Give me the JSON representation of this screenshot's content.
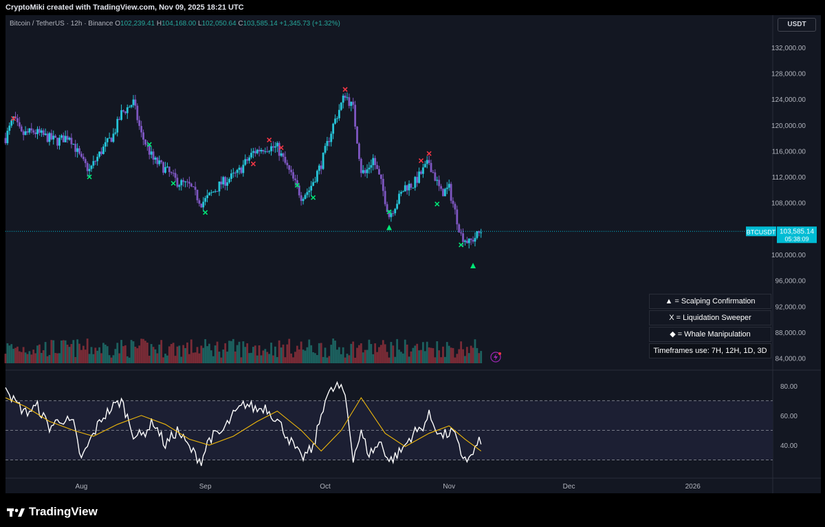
{
  "header": {
    "created_text": "CryptoMiki created with TradingView.com, Nov 09, 2025 18:21 UTC"
  },
  "legend": {
    "symbol": "Bitcoin / TetherUS · 12h · Binance",
    "o_label": "O",
    "o_value": "102,239.41",
    "h_label": "H",
    "h_value": "104,168.00",
    "l_label": "L",
    "l_value": "102,050.64",
    "c_label": "C",
    "c_value": "103,585.14",
    "change": "+1,345.73 (+1.32%)"
  },
  "currency_button": "USDT",
  "price_tag": {
    "symbol": "BTCUSDT",
    "price": "103,585.14",
    "countdown": "05:38:09"
  },
  "info_boxes": [
    "▲ = Scalping Confirmation",
    "X = Liquidation Sweeper",
    "◆ = Whale Manipulation",
    "Timeframes use: 7H, 12H, 1D, 3D"
  ],
  "brand": {
    "name": "TradingView"
  },
  "colors": {
    "background": "#131722",
    "up": "#26c6da",
    "down": "#7e57c2",
    "rsi_line": "#ffffff",
    "rsi_ma": "#f0b90b",
    "buy_x": "#00e676",
    "sell_x": "#f23645",
    "last_price_label": "#00bcd4"
  },
  "chart_data": [
    {
      "type": "candlestick",
      "series_name": "BTCUSDT",
      "y_ticks": [
        "132,000.00",
        "128,000.00",
        "124,000.00",
        "120,000.00",
        "116,000.00",
        "112,000.00",
        "108,000.00",
        "100,000.00",
        "96,000.00",
        "92,000.00",
        "88,000.00",
        "84,000.00"
      ],
      "ylim": [
        83000,
        134000
      ],
      "x_ticks": [
        "Aug",
        "Sep",
        "Oct",
        "Nov",
        "Dec",
        "2026"
      ],
      "x_tick_dates": [
        "2025-08-01",
        "2025-09-01",
        "2025-10-01",
        "2025-11-01",
        "2025-12-01",
        "2026-01-01"
      ],
      "xlim": [
        "2025-07-13",
        "2026-01-21"
      ],
      "last_price": 103585.14,
      "path_dates": [
        "2025-07-13",
        "2025-07-15",
        "2025-07-17",
        "2025-07-20",
        "2025-07-23",
        "2025-07-26",
        "2025-07-29",
        "2025-08-01",
        "2025-08-03",
        "2025-08-06",
        "2025-08-09",
        "2025-08-11",
        "2025-08-14",
        "2025-08-16",
        "2025-08-19",
        "2025-08-22",
        "2025-08-25",
        "2025-08-28",
        "2025-08-31",
        "2025-09-01",
        "2025-09-05",
        "2025-09-09",
        "2025-09-13",
        "2025-09-16",
        "2025-09-19",
        "2025-09-22",
        "2025-09-25",
        "2025-09-27",
        "2025-09-30",
        "2025-10-03",
        "2025-10-06",
        "2025-10-08",
        "2025-10-10",
        "2025-10-11",
        "2025-10-13",
        "2025-10-15",
        "2025-10-17",
        "2025-10-19",
        "2025-10-21",
        "2025-10-23",
        "2025-10-27",
        "2025-10-30",
        "2025-11-01",
        "2025-11-04",
        "2025-11-06",
        "2025-11-09"
      ],
      "path_closes": [
        118000,
        121000,
        118500,
        119000,
        118200,
        117500,
        118400,
        114500,
        113000,
        116000,
        118500,
        121800,
        123500,
        118500,
        114600,
        113200,
        111200,
        110600,
        108000,
        108400,
        111000,
        112500,
        115800,
        116600,
        116500,
        112800,
        109000,
        110000,
        114000,
        120000,
        124800,
        122500,
        113000,
        112500,
        114800,
        111000,
        106000,
        108200,
        110500,
        110800,
        114300,
        109500,
        110200,
        103000,
        101800,
        103585
      ],
      "signals": [
        {
          "type": "sell_x",
          "date": "2025-07-15",
          "price": 121000
        },
        {
          "type": "buy_x",
          "date": "2025-08-03",
          "price": 112000
        },
        {
          "type": "buy_x",
          "date": "2025-08-18",
          "price": 117000
        },
        {
          "type": "buy_x",
          "date": "2025-08-24",
          "price": 111000
        },
        {
          "type": "buy_x",
          "date": "2025-09-01",
          "price": 106500
        },
        {
          "type": "sell_x",
          "date": "2025-09-13",
          "price": 114000
        },
        {
          "type": "sell_x",
          "date": "2025-09-17",
          "price": 117700
        },
        {
          "type": "sell_x",
          "date": "2025-09-20",
          "price": 116500
        },
        {
          "type": "buy_x",
          "date": "2025-09-24",
          "price": 110700
        },
        {
          "type": "buy_x",
          "date": "2025-09-28",
          "price": 108800
        },
        {
          "type": "sell_x",
          "date": "2025-10-06",
          "price": 125500
        },
        {
          "type": "buy_x",
          "date": "2025-10-17",
          "price": 106600
        },
        {
          "type": "triangle",
          "date": "2025-10-17",
          "price": 104200
        },
        {
          "type": "sell_x",
          "date": "2025-10-25",
          "price": 114500
        },
        {
          "type": "sell_x",
          "date": "2025-10-27",
          "price": 115600
        },
        {
          "type": "buy_x",
          "date": "2025-10-29",
          "price": 107800
        },
        {
          "type": "buy_x",
          "date": "2025-11-04",
          "price": 101500
        },
        {
          "type": "triangle",
          "date": "2025-11-07",
          "price": 98300
        }
      ]
    },
    {
      "type": "line",
      "name": "RSI",
      "y_ticks": [
        "80.00",
        "60.00",
        "40.00"
      ],
      "ylim": [
        20,
        86
      ],
      "band": [
        30,
        70
      ],
      "mid_level": 50,
      "rsi_dates": [
        "2025-07-13",
        "2025-07-15",
        "2025-07-18",
        "2025-07-21",
        "2025-07-24",
        "2025-07-27",
        "2025-07-30",
        "2025-08-01",
        "2025-08-03",
        "2025-08-06",
        "2025-08-09",
        "2025-08-11",
        "2025-08-14",
        "2025-08-16",
        "2025-08-19",
        "2025-08-22",
        "2025-08-25",
        "2025-08-28",
        "2025-08-31",
        "2025-09-02",
        "2025-09-05",
        "2025-09-08",
        "2025-09-11",
        "2025-09-14",
        "2025-09-16",
        "2025-09-19",
        "2025-09-22",
        "2025-09-25",
        "2025-09-28",
        "2025-10-01",
        "2025-10-04",
        "2025-10-06",
        "2025-10-08",
        "2025-10-10",
        "2025-10-12",
        "2025-10-15",
        "2025-10-17",
        "2025-10-20",
        "2025-10-23",
        "2025-10-25",
        "2025-10-27",
        "2025-10-30",
        "2025-11-02",
        "2025-11-04",
        "2025-11-06",
        "2025-11-09"
      ],
      "rsi_values": [
        82,
        70,
        62,
        66,
        52,
        58,
        54,
        30,
        42,
        58,
        66,
        70,
        48,
        46,
        56,
        40,
        50,
        38,
        29,
        45,
        48,
        60,
        68,
        64,
        66,
        57,
        44,
        31,
        38,
        72,
        80,
        74,
        32,
        48,
        34,
        42,
        29,
        36,
        48,
        51,
        60,
        46,
        49,
        34,
        30,
        44
      ],
      "ma_dates": [
        "2025-07-13",
        "2025-07-18",
        "2025-07-24",
        "2025-07-30",
        "2025-08-04",
        "2025-08-10",
        "2025-08-16",
        "2025-08-22",
        "2025-08-28",
        "2025-09-02",
        "2025-09-08",
        "2025-09-14",
        "2025-09-19",
        "2025-09-25",
        "2025-09-30",
        "2025-10-05",
        "2025-10-10",
        "2025-10-16",
        "2025-10-21",
        "2025-10-27",
        "2025-11-01",
        "2025-11-05",
        "2025-11-09"
      ],
      "ma_values": [
        72,
        66,
        56,
        50,
        46,
        54,
        60,
        54,
        44,
        40,
        46,
        56,
        63,
        50,
        36,
        50,
        72,
        48,
        39,
        48,
        53,
        44,
        36
      ]
    }
  ]
}
